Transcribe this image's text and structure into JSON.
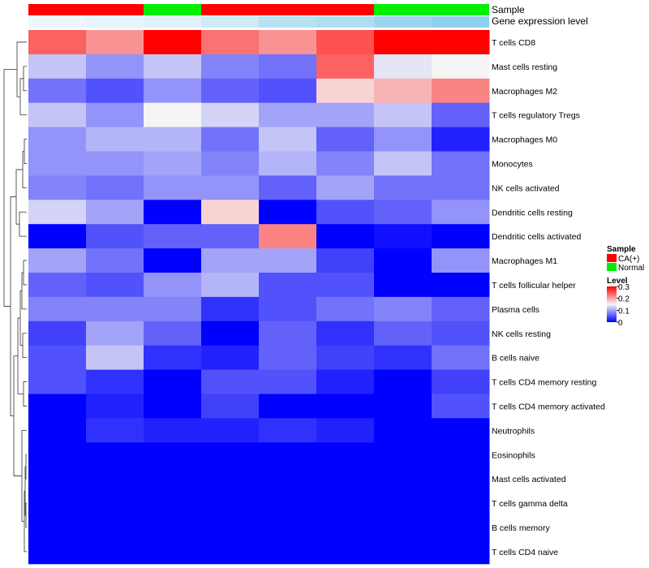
{
  "chart_data": {
    "type": "heatmap",
    "annotation_labels": [
      "Sample",
      "Gene expression level"
    ],
    "samples": [
      "CA(+)",
      "CA(+)",
      "Normal",
      "CA(+)",
      "CA(+)",
      "CA(+)",
      "Normal",
      "Normal"
    ],
    "gene_expression_level": [
      0.05,
      0.06,
      0.08,
      0.12,
      0.18,
      0.2,
      0.25,
      0.28
    ],
    "gene_expression_scale": {
      "min": 0,
      "max": 0.3,
      "low_color": "#ffffff",
      "high_color": "#87ceeb"
    },
    "rows": [
      "T cells CD8",
      "Mast cells resting",
      "Macrophages M2",
      "T cells regulatory  Tregs",
      "Macrophages M0",
      "Monocytes",
      "NK cells activated",
      "Dendritic cells resting",
      "Dendritic cells activated",
      "Macrophages M1",
      "T cells follicular helper",
      "Plasma cells",
      "NK cells resting",
      "B cells naive",
      "T cells CD4 memory resting",
      "T cells CD4 memory activated",
      "Neutrophils",
      "Eosinophils",
      "Mast cells activated",
      "T cells gamma delta",
      "B cells memory",
      "T cells CD4 naive"
    ],
    "values": [
      [
        0.24,
        0.21,
        0.3,
        0.23,
        0.21,
        0.25,
        0.3,
        0.3
      ],
      [
        0.12,
        0.09,
        0.12,
        0.08,
        0.07,
        0.24,
        0.14,
        0.15
      ],
      [
        0.07,
        0.05,
        0.09,
        0.06,
        0.05,
        0.17,
        0.19,
        0.22
      ],
      [
        0.12,
        0.09,
        0.15,
        0.13,
        0.1,
        0.1,
        0.12,
        0.06
      ],
      [
        0.09,
        0.11,
        0.11,
        0.07,
        0.12,
        0.06,
        0.09,
        0.02
      ],
      [
        0.09,
        0.09,
        0.1,
        0.08,
        0.11,
        0.08,
        0.12,
        0.07
      ],
      [
        0.08,
        0.07,
        0.09,
        0.09,
        0.06,
        0.1,
        0.07,
        0.07
      ],
      [
        0.13,
        0.1,
        0.0,
        0.17,
        0.0,
        0.05,
        0.06,
        0.09
      ],
      [
        0.0,
        0.05,
        0.06,
        0.06,
        0.22,
        0.0,
        0.01,
        0.0
      ],
      [
        0.1,
        0.07,
        0.0,
        0.1,
        0.1,
        0.04,
        0.0,
        0.09
      ],
      [
        0.06,
        0.05,
        0.09,
        0.11,
        0.05,
        0.05,
        0.0,
        0.0
      ],
      [
        0.08,
        0.08,
        0.08,
        0.03,
        0.05,
        0.07,
        0.08,
        0.06
      ],
      [
        0.04,
        0.1,
        0.06,
        0.0,
        0.06,
        0.03,
        0.06,
        0.05
      ],
      [
        0.05,
        0.12,
        0.03,
        0.02,
        0.06,
        0.04,
        0.03,
        0.07
      ],
      [
        0.05,
        0.03,
        0.0,
        0.05,
        0.05,
        0.02,
        0.0,
        0.04
      ],
      [
        0.0,
        0.02,
        0.0,
        0.04,
        0.0,
        0.0,
        0.0,
        0.05
      ],
      [
        0.0,
        0.03,
        0.02,
        0.02,
        0.03,
        0.02,
        0.0,
        0.0
      ],
      [
        0.0,
        0.0,
        0.0,
        0.0,
        0.0,
        0.0,
        0.0,
        0.0
      ],
      [
        0.0,
        0.0,
        0.0,
        0.0,
        0.0,
        0.0,
        0.0,
        0.0
      ],
      [
        0.0,
        0.0,
        0.0,
        0.0,
        0.0,
        0.0,
        0.0,
        0.0
      ],
      [
        0.0,
        0.0,
        0.0,
        0.0,
        0.0,
        0.0,
        0.0,
        0.0
      ],
      [
        0.0,
        0.0,
        0.0,
        0.0,
        0.0,
        0.0,
        0.0,
        0.0
      ]
    ],
    "value_scale": {
      "min": 0,
      "mid": 0.15,
      "max": 0.3,
      "low_color": "#0000ff",
      "mid_color": "#f5f5f5",
      "high_color": "#ff0000"
    },
    "row_dendrogram": true,
    "legend": {
      "position": "right",
      "sample_title": "Sample",
      "sample_items": [
        {
          "label": "CA(+)",
          "color": "#ff0000"
        },
        {
          "label": "Normal",
          "color": "#00ee00"
        }
      ],
      "level_title": "Level",
      "level_ticks": [
        "0.3",
        "0.2",
        "0.1",
        "0"
      ],
      "level_tick_values": [
        0.3,
        0.2,
        0.1,
        0
      ]
    },
    "sample_colors": {
      "CA(+)": "#ff0000",
      "Normal": "#00ee00"
    }
  }
}
